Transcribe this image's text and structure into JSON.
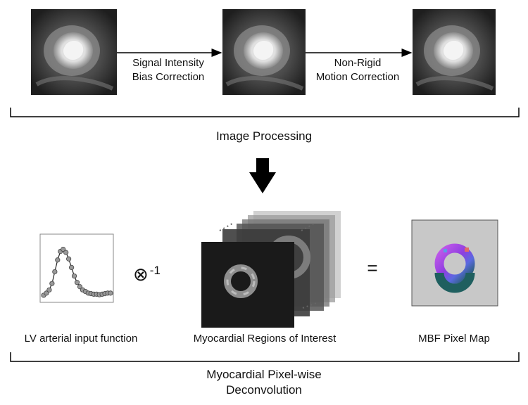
{
  "top_row": {
    "step1_label_line1": "Signal Intensity",
    "step1_label_line2": "Bias Correction",
    "step2_label_line1": "Non-Rigid",
    "step2_label_line2": "Motion Correction",
    "section_label": "Image Processing"
  },
  "bottom_row": {
    "aif_label": "LV arterial input function",
    "operator_symbol": "⊗",
    "operator_exponent": "-1",
    "roi_label": "Myocardial Regions of Interest",
    "equals": "=",
    "mbf_label": "MBF Pixel Map",
    "section_label_line1": "Myocardial Pixel-wise",
    "section_label_line2": "Deconvolution"
  },
  "aif_curve": {
    "y": [
      0.08,
      0.12,
      0.18,
      0.3,
      0.52,
      0.74,
      0.9,
      0.94,
      0.88,
      0.76,
      0.6,
      0.44,
      0.32,
      0.24,
      0.18,
      0.15,
      0.12,
      0.11,
      0.1,
      0.1,
      0.09,
      0.1,
      0.11,
      0.12,
      0.12
    ]
  },
  "colors": {
    "arrow": "#000000",
    "aif_point": "#999999",
    "mbf_background": "#c8c8c8",
    "mbf_ring_magenta": "#b04ae0",
    "mbf_ring_teal": "#1f5f5f"
  }
}
